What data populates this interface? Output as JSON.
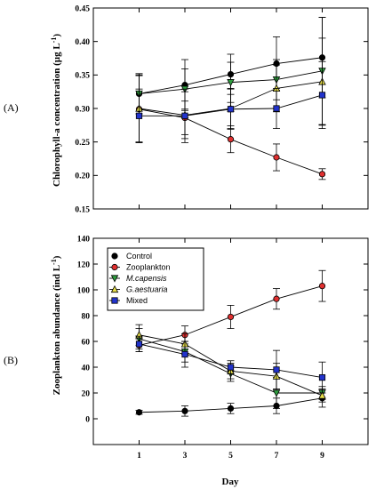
{
  "chart_data": [
    {
      "type": "line",
      "panel_label": "(A)",
      "ylabel": "Chlorophyll-a concentration (µg L",
      "ylabel_sup": "-1",
      "ylabel_close": ")",
      "xlabel": "",
      "x": [
        1,
        3,
        5,
        7,
        9
      ],
      "xlim": [
        -1,
        11
      ],
      "ylim": [
        0.15,
        0.45
      ],
      "yticks": [
        0.15,
        0.2,
        0.25,
        0.3,
        0.35,
        0.4,
        0.45
      ],
      "ytick_labels": [
        "0.15",
        "0.20",
        "0.25",
        "0.30",
        "0.35",
        "0.40",
        "0.45"
      ],
      "grid": false,
      "series": [
        {
          "name": "Control",
          "marker": "circle",
          "color": "#000000",
          "values": [
            0.322,
            0.335,
            0.351,
            0.367,
            0.376
          ],
          "errors": [
            0.03,
            0.038,
            0.03,
            0.04,
            0.06
          ]
        },
        {
          "name": "Zooplankton",
          "marker": "circle",
          "color": "#e03030",
          "values": [
            0.299,
            0.286,
            0.254,
            0.227,
            0.202
          ],
          "errors": [
            0.05,
            0.025,
            0.02,
            0.02,
            0.008
          ]
        },
        {
          "name": "M.capensis",
          "marker": "triangle-down",
          "color": "#2e9e3e",
          "values": [
            0.322,
            0.329,
            0.339,
            0.343,
            0.356
          ],
          "errors": [
            0.03,
            0.03,
            0.03,
            0.03,
            0.08
          ]
        },
        {
          "name": "G.aestuaria",
          "marker": "triangle-up",
          "color": "#e8e04a",
          "values": [
            0.3,
            0.29,
            0.3,
            0.33,
            0.34
          ],
          "errors": [
            0.05,
            0.035,
            0.03,
            0.035,
            0.065
          ]
        },
        {
          "name": "Mixed",
          "marker": "square",
          "color": "#2233cc",
          "values": [
            0.289,
            0.289,
            0.299,
            0.3,
            0.32
          ],
          "errors": [
            0.04,
            0.04,
            0.03,
            0.03,
            0.05
          ]
        }
      ]
    },
    {
      "type": "line",
      "panel_label": "(B)",
      "ylabel": "Zooplankton abundance (ind L",
      "ylabel_sup": "-1",
      "ylabel_close": ")",
      "xlabel": "Day",
      "x": [
        1,
        3,
        5,
        7,
        9
      ],
      "xticks": [
        1,
        3,
        5,
        7,
        9
      ],
      "xtick_labels": [
        "1",
        "3",
        "5",
        "7",
        "9"
      ],
      "xlim": [
        -1,
        11
      ],
      "ylim": [
        -20,
        140
      ],
      "yticks": [
        0,
        20,
        40,
        60,
        80,
        100,
        120,
        140
      ],
      "ytick_labels": [
        "0",
        "20",
        "40",
        "60",
        "80",
        "100",
        "120",
        "140"
      ],
      "grid": false,
      "legend_position": "top-left",
      "series": [
        {
          "name": "Control",
          "marker": "circle",
          "color": "#000000",
          "values": [
            5,
            6,
            8,
            10,
            16
          ],
          "errors": [
            1.5,
            4,
            4,
            6,
            7
          ]
        },
        {
          "name": "Zooplankton",
          "marker": "circle",
          "color": "#e03030",
          "values": [
            57,
            65,
            79,
            93,
            103
          ],
          "errors": [
            5,
            7,
            9,
            8,
            12
          ]
        },
        {
          "name": "M.capensis",
          "marker": "triangle-down",
          "color": "#2e9e3e",
          "values": [
            62,
            52,
            35,
            20,
            20
          ],
          "errors": [
            8,
            8,
            6,
            12,
            5
          ]
        },
        {
          "name": "G.aestuaria",
          "marker": "triangle-up",
          "color": "#e8e04a",
          "values": [
            65,
            58,
            37,
            33,
            18
          ],
          "errors": [
            8,
            8,
            6,
            10,
            5
          ]
        },
        {
          "name": "Mixed",
          "marker": "square",
          "color": "#2233cc",
          "values": [
            58,
            50,
            40,
            38,
            32
          ],
          "errors": [
            6,
            10,
            5,
            15,
            12
          ]
        }
      ],
      "legend": [
        {
          "label": "Control",
          "italic": false
        },
        {
          "label": "Zooplankton",
          "italic": false
        },
        {
          "label": "M.capensis",
          "italic": true
        },
        {
          "label": "G.aestuaria",
          "italic": true
        },
        {
          "label": "Mixed",
          "italic": false
        }
      ]
    }
  ]
}
